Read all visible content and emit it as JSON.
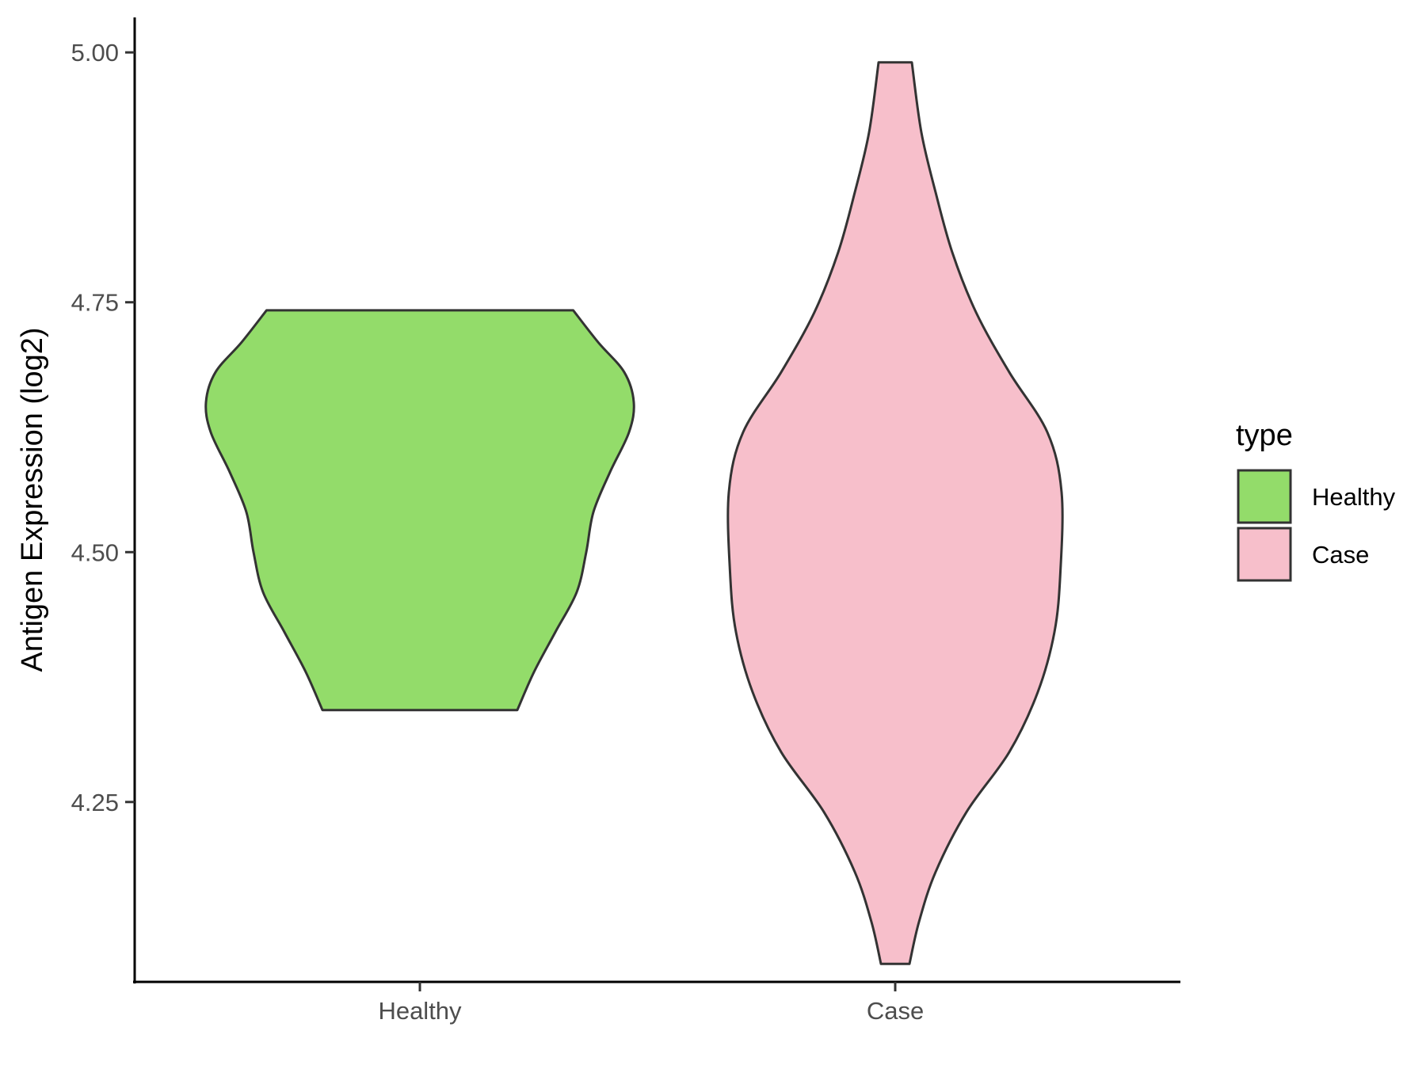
{
  "chart_data": {
    "type": "violin",
    "categories": [
      "Healthy",
      "Case"
    ],
    "xlabel": "",
    "ylabel": "Antigen Expression (log2)",
    "ylim": [
      4.07,
      5.035
    ],
    "yticks": [
      "4.25",
      "4.50",
      "4.75",
      "5.00"
    ],
    "grid": false,
    "legend": {
      "title": "type",
      "position": "right",
      "entries": [
        {
          "label": "Healthy",
          "color": "#93DC6A"
        },
        {
          "label": "Case",
          "color": "#F7BFCB"
        }
      ]
    },
    "series": [
      {
        "category": "Healthy",
        "color": "#93DC6A",
        "min": 4.342,
        "max": 4.742,
        "profile": [
          [
            4.342,
            0.41
          ],
          [
            4.38,
            0.48
          ],
          [
            4.42,
            0.57
          ],
          [
            4.46,
            0.66
          ],
          [
            4.5,
            0.7
          ],
          [
            4.54,
            0.73
          ],
          [
            4.58,
            0.8
          ],
          [
            4.62,
            0.88
          ],
          [
            4.65,
            0.9
          ],
          [
            4.68,
            0.86
          ],
          [
            4.71,
            0.75
          ],
          [
            4.742,
            0.645
          ]
        ]
      },
      {
        "category": "Case",
        "color": "#F7BFCB",
        "min": 4.088,
        "max": 4.99,
        "profile": [
          [
            4.088,
            0.06
          ],
          [
            4.13,
            0.1
          ],
          [
            4.18,
            0.17
          ],
          [
            4.24,
            0.3
          ],
          [
            4.3,
            0.48
          ],
          [
            4.36,
            0.6
          ],
          [
            4.42,
            0.67
          ],
          [
            4.48,
            0.695
          ],
          [
            4.56,
            0.7
          ],
          [
            4.62,
            0.64
          ],
          [
            4.68,
            0.48
          ],
          [
            4.74,
            0.34
          ],
          [
            4.8,
            0.24
          ],
          [
            4.86,
            0.17
          ],
          [
            4.92,
            0.11
          ],
          [
            4.99,
            0.07
          ]
        ]
      }
    ]
  }
}
